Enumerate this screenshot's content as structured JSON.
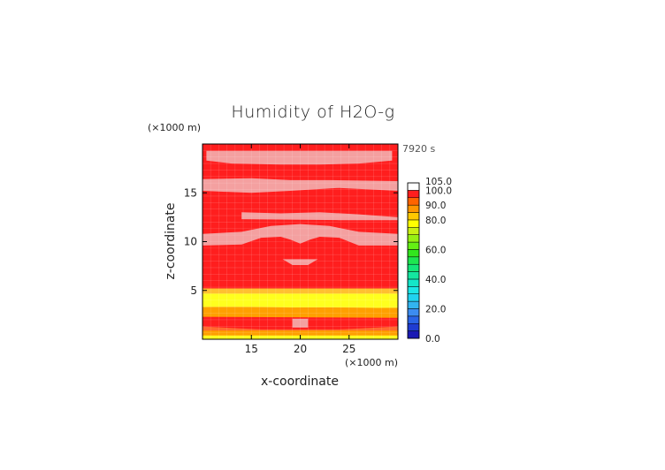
{
  "chart_data": {
    "type": "heatmap",
    "title": "Humidity of H2O-g",
    "xlabel": "x-coordinate",
    "ylabel": "z-coordinate",
    "x_unit": "(×1000 m)",
    "z_unit": "(×1000 m)",
    "time_label": "7920 s",
    "xlim": [
      10,
      30
    ],
    "ylim": [
      0,
      20
    ],
    "x_ticks": [
      15,
      20,
      25
    ],
    "y_ticks": [
      5,
      10,
      15
    ],
    "colorbar": {
      "labels": [
        "105.0",
        "100.0",
        "90.0",
        "80.0",
        "60.0",
        "40.0",
        "20.0",
        "0.0"
      ],
      "levels": [
        0,
        5,
        10,
        15,
        20,
        25,
        30,
        35,
        40,
        45,
        50,
        55,
        60,
        65,
        70,
        75,
        80,
        85,
        90,
        95,
        100,
        105
      ],
      "colors": [
        "#1a1ab4",
        "#1f3cd2",
        "#2a64e6",
        "#3c8cf0",
        "#32b4f0",
        "#20d2f0",
        "#1ce6e6",
        "#14e6c8",
        "#14e6a0",
        "#14e678",
        "#1ee650",
        "#32e61e",
        "#64f014",
        "#96f014",
        "#c8f014",
        "#ffff00",
        "#ffc800",
        "#ff9600",
        "#ff6400",
        "#ff1e1e",
        "#ffffff"
      ]
    },
    "regions": [
      {
        "level": "100-105",
        "z_range": [
          18.6,
          19.5
        ],
        "note": "upper pale band"
      },
      {
        "level": "100-105",
        "z_range": [
          15.3,
          16.5
        ],
        "note": "band"
      },
      {
        "level": "100-105",
        "z_range": [
          12.3,
          13.0
        ],
        "note": "band"
      },
      {
        "level": "100-105",
        "z_range": [
          9.5,
          10.8
        ],
        "note": "band"
      },
      {
        "level": "100-105",
        "z_range": [
          7.8,
          8.2
        ],
        "note": "small patch near x=20"
      },
      {
        "level": "100-105",
        "z_range": [
          1.0,
          2.0
        ],
        "note": "small patch near x=20"
      },
      {
        "level": "80-85",
        "z_range": [
          3.5,
          5.0
        ],
        "note": "yellow band"
      },
      {
        "level": "85-90",
        "z_range": [
          2.3,
          3.5
        ],
        "note": "orange band"
      },
      {
        "level": "80-85",
        "z_range": [
          0,
          0.5
        ],
        "note": "bottom edge"
      }
    ]
  }
}
